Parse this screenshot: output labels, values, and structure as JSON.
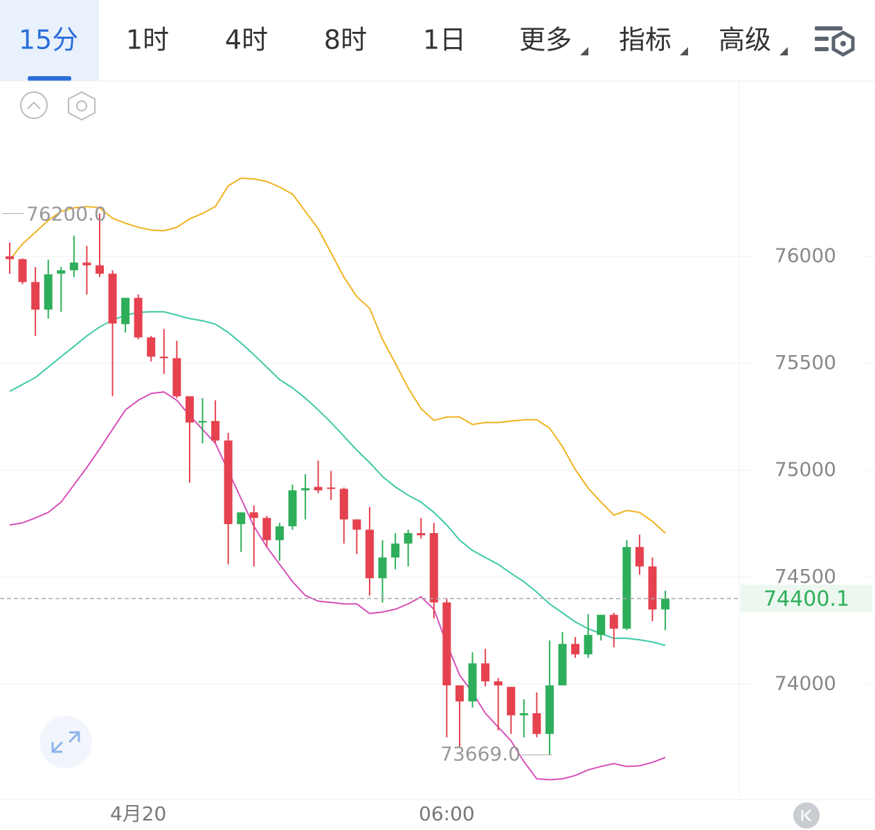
{
  "toolbar": {
    "tabs": [
      "15分",
      "1时",
      "4时",
      "8时",
      "1日",
      "更多",
      "指标",
      "高级"
    ]
  },
  "chart_data": {
    "type": "candlestick",
    "categories": [
      null,
      null,
      null,
      null,
      null,
      null,
      null,
      null,
      null,
      null,
      "4月20",
      null,
      null,
      null,
      null,
      null,
      null,
      null,
      null,
      null,
      null,
      null,
      null,
      null,
      null,
      null,
      null,
      null,
      null,
      null,
      null,
      null,
      null,
      null,
      "06:00",
      null,
      null,
      null,
      null,
      null,
      null,
      null,
      null,
      null,
      null,
      null,
      null,
      null,
      null,
      null,
      null,
      null
    ],
    "open": [
      76000,
      75987,
      75880,
      75751,
      75919,
      75935,
      75971,
      75958,
      75919,
      75683,
      75806,
      75621,
      75531,
      75524,
      75346,
      75223,
      75230,
      75139,
      74748,
      74803,
      74777,
      74673,
      74738,
      74906,
      74922,
      74919,
      74913,
      74770,
      74722,
      74495,
      74592,
      74657,
      74706,
      74706,
      74382,
      73994,
      73919,
      74097,
      74013,
      73987,
      73854,
      73864,
      73767,
      73994,
      74188,
      74139,
      74230,
      74324,
      74259,
      74641,
      74550,
      74349
    ],
    "high": [
      76065,
      75990,
      75950,
      75984,
      75951,
      76097,
      76049,
      76200,
      75935,
      75806,
      75822,
      75628,
      75660,
      75605,
      75346,
      75337,
      75327,
      75175,
      74803,
      74835,
      74786,
      74754,
      74932,
      74981,
      75045,
      74997,
      74919,
      74770,
      74828,
      74673,
      74706,
      74722,
      74777,
      74754,
      74398,
      73994,
      74149,
      74165,
      74029,
      73987,
      73929,
      73961,
      74204,
      74243,
      74220,
      74327,
      74324,
      74333,
      74673,
      74699,
      74592,
      74437
    ],
    "low": [
      75919,
      75870,
      75628,
      75709,
      75741,
      75903,
      75822,
      75903,
      75346,
      75644,
      75612,
      75508,
      75450,
      75337,
      74942,
      75126,
      75126,
      74560,
      74618,
      74550,
      74641,
      74576,
      74722,
      74770,
      74893,
      74861,
      74657,
      74608,
      74414,
      74382,
      74537,
      74550,
      74680,
      74307,
      73751,
      73702,
      73890,
      73990,
      73783,
      73767,
      73751,
      73751,
      73669,
      73994,
      74123,
      74123,
      74204,
      74172,
      74252,
      74511,
      74294,
      74252
    ],
    "close": [
      75987,
      75880,
      75751,
      75916,
      75935,
      75971,
      75958,
      75919,
      75686,
      75806,
      75621,
      75531,
      75524,
      75346,
      75223,
      75230,
      75139,
      74748,
      74803,
      74777,
      74673,
      74738,
      74906,
      74916,
      74906,
      74913,
      74770,
      74722,
      74495,
      74592,
      74657,
      74706,
      74696,
      74382,
      73994,
      73919,
      74097,
      74013,
      73994,
      73854,
      73864,
      73767,
      73994,
      74188,
      74139,
      74230,
      74324,
      74259,
      74641,
      74550,
      74349,
      74400.1
    ],
    "up_color": "#2eae5a",
    "down_color": "#e5414f",
    "bands": [
      {
        "color": "#f0b21e",
        "values": [
          75984,
          76058,
          76113,
          76168,
          76210,
          76227,
          76233,
          76227,
          76178,
          76155,
          76136,
          76123,
          76120,
          76136,
          76175,
          76201,
          76233,
          76330,
          76366,
          76362,
          76350,
          76324,
          76291,
          76210,
          76129,
          76016,
          75903,
          75812,
          75757,
          75612,
          75500,
          75385,
          75288,
          75233,
          75249,
          75249,
          75214,
          75223,
          75223,
          75230,
          75236,
          75236,
          75197,
          75110,
          75003,
          74916,
          74851,
          74790,
          74812,
          74803,
          74761,
          74706
        ]
      },
      {
        "color": "#3cc9a6",
        "values": [
          75369,
          75401,
          75434,
          75482,
          75531,
          75579,
          75628,
          75670,
          75702,
          75725,
          75738,
          75741,
          75741,
          75725,
          75709,
          75699,
          75683,
          75644,
          75595,
          75540,
          75482,
          75424,
          75385,
          75337,
          75282,
          75223,
          75159,
          75094,
          75036,
          74971,
          74922,
          74883,
          74851,
          74803,
          74744,
          74673,
          74625,
          74592,
          74560,
          74518,
          74479,
          74430,
          74375,
          74333,
          74291,
          74259,
          74236,
          74214,
          74214,
          74207,
          74197,
          74181
        ]
      },
      {
        "color": "#d64fb8",
        "values": [
          74744,
          74754,
          74777,
          74803,
          74851,
          74932,
          75013,
          75100,
          75191,
          75282,
          75327,
          75359,
          75366,
          75327,
          75256,
          75191,
          75126,
          74997,
          74867,
          74738,
          74641,
          74560,
          74479,
          74414,
          74388,
          74382,
          74375,
          74375,
          74330,
          74337,
          74350,
          74375,
          74408,
          74350,
          74188,
          74042,
          73961,
          73864,
          73799,
          73735,
          73638,
          73557,
          73553,
          73557,
          73573,
          73599,
          73615,
          73628,
          73615,
          73618,
          73634,
          73657
        ]
      }
    ],
    "ylim": [
      73470,
      76820
    ],
    "yticks": [
      74000,
      74500,
      75000,
      75500,
      76000
    ],
    "grid": true,
    "max_label": {
      "value": 76200,
      "label": "76200.0"
    },
    "min_label": {
      "value": 73669,
      "label": "73669.0"
    },
    "last_price": 74400.1
  }
}
